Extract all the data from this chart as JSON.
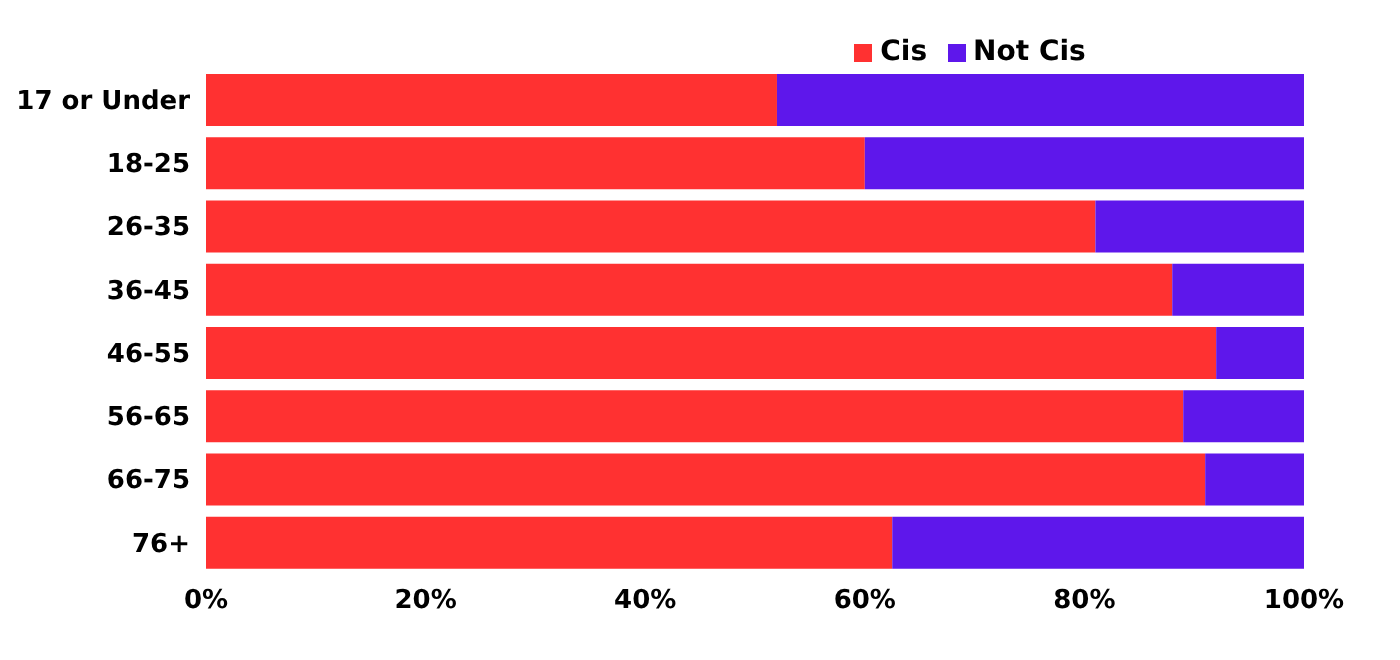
{
  "chart_data": {
    "type": "bar",
    "orientation": "horizontal",
    "stacked": true,
    "categories": [
      "17 or Under",
      "18-25",
      "26-35",
      "36-45",
      "46-55",
      "56-65",
      "66-75",
      "76+"
    ],
    "series": [
      {
        "name": "Cis",
        "color": "#ff3131",
        "values": [
          52,
          60,
          81,
          88,
          92,
          89,
          91,
          62.5
        ]
      },
      {
        "name": "Not Cis",
        "color": "#5e17eb",
        "values": [
          48,
          40,
          19,
          12,
          8,
          11,
          9,
          37.5
        ]
      }
    ],
    "xlim": [
      0,
      100
    ],
    "xticks": [
      {
        "value": 0,
        "label": "0%"
      },
      {
        "value": 20,
        "label": "20%"
      },
      {
        "value": 40,
        "label": "40%"
      },
      {
        "value": 60,
        "label": "60%"
      },
      {
        "value": 80,
        "label": "80%"
      },
      {
        "value": 100,
        "label": "100%"
      }
    ],
    "legend": "top",
    "grid": false
  }
}
